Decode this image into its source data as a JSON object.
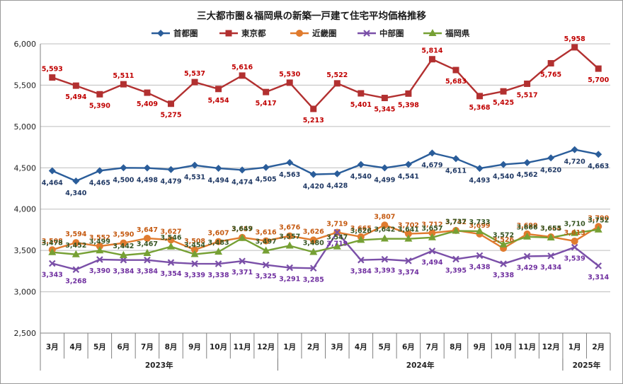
{
  "chart_data": {
    "type": "line",
    "title": "三大都市圏＆福岡県の新築一戸建て住宅平均価格推移",
    "xlabel": "",
    "ylabel": "",
    "ylim": [
      2500,
      6000
    ],
    "yticks": [
      "2,500",
      "3,000",
      "3,500",
      "4,000",
      "4,500",
      "5,000",
      "5,500",
      "6,000"
    ],
    "ytick_values": [
      2500,
      3000,
      3500,
      4000,
      4500,
      5000,
      5500,
      6000
    ],
    "grid": true,
    "legend_position": "top",
    "categories": [
      "3月",
      "4月",
      "5月",
      "6月",
      "7月",
      "8月",
      "9月",
      "10月",
      "11月",
      "12月",
      "1月",
      "2月",
      "3月",
      "4月",
      "5月",
      "6月",
      "7月",
      "8月",
      "9月",
      "10月",
      "11月",
      "12月",
      "1月",
      "2月"
    ],
    "years": [
      {
        "label": "2023年",
        "start": 0,
        "end": 9
      },
      {
        "label": "2024年",
        "start": 10,
        "end": 21
      },
      {
        "label": "2025年",
        "start": 22,
        "end": 23
      }
    ],
    "series": [
      {
        "name": "首都圏",
        "color": "#2a5d9a",
        "label_color": "#1f3864",
        "marker": "diamond",
        "values": [
          4464,
          4340,
          4465,
          4500,
          4498,
          4479,
          4531,
          4494,
          4474,
          4505,
          4563,
          4420,
          4428,
          4540,
          4499,
          4541,
          4679,
          4611,
          4493,
          4540,
          4562,
          4620,
          4720,
          4663
        ],
        "value_labels": [
          "4,464",
          "4,340",
          "4,465",
          "4,500",
          "4,498",
          "4,479",
          "4,531",
          "4,494",
          "4,474",
          "4,505",
          "4,563",
          "4,420",
          "4,428",
          "4,540",
          "4,499",
          "4,541",
          "4,679",
          "4,611",
          "4,493",
          "4,540",
          "4,562",
          "4,620",
          "4,720",
          "4,663"
        ]
      },
      {
        "name": "東京都",
        "color": "#b23030",
        "label_color": "#c00000",
        "marker": "square",
        "values": [
          5593,
          5494,
          5390,
          5511,
          5409,
          5275,
          5537,
          5454,
          5616,
          5417,
          5530,
          5213,
          5522,
          5401,
          5345,
          5398,
          5814,
          5683,
          5368,
          5425,
          5517,
          5765,
          5958,
          5700
        ],
        "value_labels": [
          "5,593",
          "5,494",
          "5,390",
          "5,511",
          "5,409",
          "5,275",
          "5,537",
          "5,454",
          "5,616",
          "5,417",
          "5,530",
          "5,213",
          "5,522",
          "5,401",
          "5,345",
          "5,398",
          "5,814",
          "5,683",
          "5,368",
          "5,425",
          "5,517",
          "5,765",
          "5,958",
          "5,700"
        ]
      },
      {
        "name": "近畿圏",
        "color": "#e07b2e",
        "label_color": "#c55a11",
        "marker": "circle",
        "values": [
          3508,
          3594,
          3552,
          3590,
          3647,
          3627,
          3508,
          3607,
          3657,
          3616,
          3676,
          3626,
          3719,
          3665,
          3807,
          3702,
          3712,
          3742,
          3699,
          3526,
          3699,
          3664,
          3613,
          3790
        ],
        "value_labels": [
          "3,508",
          "3,594",
          "3,552",
          "3,590",
          "3,647",
          "3,627",
          "3,508",
          "3,607",
          "3,657",
          "3,616",
          "3,676",
          "3,626",
          "3,719",
          "3,665",
          "3,807",
          "3,702",
          "3,712",
          "3,742",
          "3,699",
          "3,526",
          "3,699",
          "3,664",
          "3,613",
          "3,790"
        ]
      },
      {
        "name": "中部圏",
        "color": "#7a4fa8",
        "label_color": "#7030a0",
        "marker": "x",
        "values": [
          3343,
          3268,
          3390,
          3384,
          3384,
          3354,
          3339,
          3338,
          3371,
          3325,
          3291,
          3285,
          3719,
          3384,
          3393,
          3374,
          3494,
          3395,
          3438,
          3338,
          3429,
          3434,
          3539,
          3314
        ],
        "value_labels": [
          "3,343",
          "3,268",
          "3,390",
          "3,384",
          "3,384",
          "3,354",
          "3,339",
          "3,338",
          "3,371",
          "3,325",
          "3,291",
          "3,285",
          "3,719",
          "3,384",
          "3,393",
          "3,374",
          "3,494",
          "3,395",
          "3,438",
          "3,338",
          "3,429",
          "3,434",
          "3,539",
          "3,314"
        ]
      },
      {
        "name": "福岡県",
        "color": "#76a034",
        "label_color": "#375623",
        "marker": "triangle",
        "values": [
          3478,
          3452,
          3499,
          3442,
          3467,
          3546,
          3454,
          3483,
          3649,
          3497,
          3557,
          3480,
          3547,
          3626,
          3642,
          3641,
          3657,
          3737,
          3733,
          3572,
          3666,
          3655,
          3710,
          3752
        ],
        "value_labels": [
          "3,478",
          "3,452",
          "3,499",
          "3,442",
          "3,467",
          "3,546",
          "3,454",
          "3,483",
          "3,649",
          "3,497",
          "3,557",
          "3,480",
          "3,547",
          "3,626",
          "3,642",
          "3,641",
          "3,657",
          "3,737",
          "3,733",
          "3,572",
          "3,666",
          "3,655",
          "3,710",
          "3,752"
        ]
      }
    ]
  }
}
